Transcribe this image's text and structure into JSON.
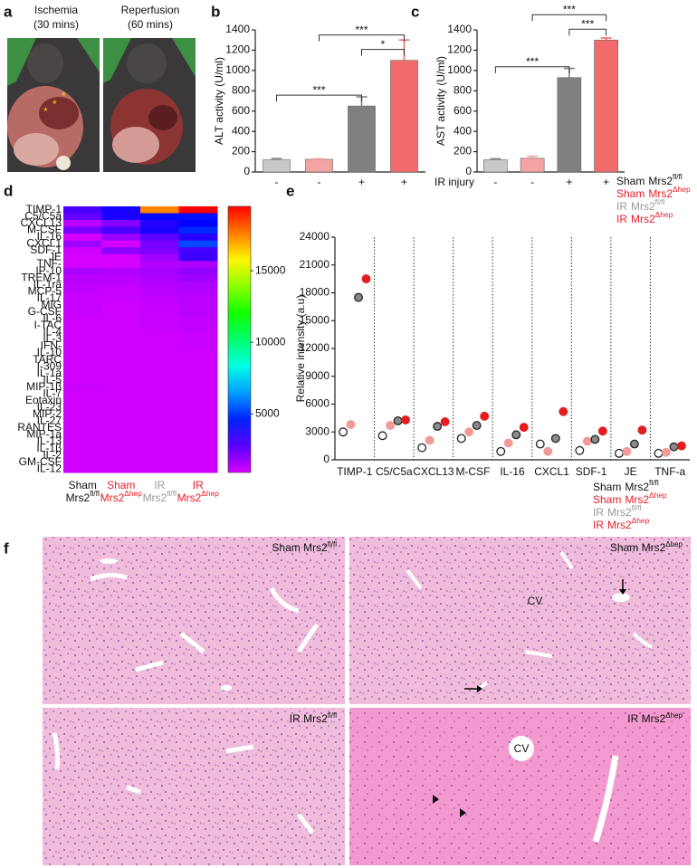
{
  "panel_a": {
    "label": "a",
    "photos": [
      {
        "title": "Ischemia",
        "subtitle": "(30 mins)",
        "marks": [
          "*",
          "*",
          "*"
        ]
      },
      {
        "title": "Reperfusion",
        "subtitle": "(60 mins)"
      }
    ]
  },
  "chart_data": [
    {
      "type": "bar",
      "label": "b",
      "ylabel": "ALT activity (U/ml)",
      "ylim": [
        0,
        1400
      ],
      "yticks": [
        0,
        200,
        400,
        600,
        800,
        1000,
        1200,
        1400
      ],
      "series": [
        {
          "color": "#c8c8c8",
          "values": [
            120
          ],
          "errors": [
            12
          ]
        },
        {
          "color": "#f4a3a3",
          "values": [
            125
          ],
          "errors": [
            5
          ]
        },
        {
          "color": "#808080",
          "values": [
            650
          ],
          "errors": [
            90
          ]
        },
        {
          "color": "#f26b6b",
          "values": [
            1100
          ],
          "errors": [
            200
          ]
        }
      ],
      "treatment": [
        "-",
        "-",
        "+",
        "+"
      ],
      "annotations": [
        {
          "text": "***",
          "pair": [
            0,
            2
          ]
        },
        {
          "text": "***",
          "pair": [
            1,
            3
          ]
        },
        {
          "text": "*",
          "pair": [
            2,
            3
          ]
        }
      ]
    },
    {
      "type": "bar",
      "label": "c",
      "ylabel": "AST activity (U/ml)",
      "ylim": [
        0,
        1400
      ],
      "yticks": [
        0,
        200,
        400,
        600,
        800,
        1000,
        1200,
        1400
      ],
      "series": [
        {
          "group": "Sham",
          "gene": "Mrs2",
          "sup": "fl/fl",
          "label_color": "#111111",
          "color": "#c8c8c8",
          "values": [
            120
          ],
          "errors": [
            10
          ]
        },
        {
          "group": "Sham",
          "gene": "Mrs2",
          "sup": "Δhep",
          "label_color": "#e8202a",
          "color": "#f4a3a3",
          "values": [
            135
          ],
          "errors": [
            20
          ]
        },
        {
          "group": "IR",
          "gene": "Mrs2",
          "sup": "fl/fl",
          "label_color": "#999999",
          "color": "#808080",
          "values": [
            930
          ],
          "errors": [
            90
          ]
        },
        {
          "group": "IR",
          "gene": "Mrs2",
          "sup": "Δhep",
          "label_color": "#e8202a",
          "color": "#f26b6b",
          "values": [
            1300
          ],
          "errors": [
            20
          ]
        }
      ],
      "treatment_label": "IR injury",
      "treatment": [
        "-",
        "-",
        "+",
        "+"
      ],
      "annotations": [
        {
          "text": "***",
          "pair": [
            0,
            2
          ]
        },
        {
          "text": "***",
          "pair": [
            1,
            3
          ]
        },
        {
          "text": "***",
          "pair": [
            2,
            3
          ]
        }
      ]
    },
    {
      "type": "heatmap",
      "label": "d",
      "columns": [
        {
          "group": "Sham",
          "gene": "Mrs2",
          "sup": "fl/fl",
          "label_color": "#111111"
        },
        {
          "group": "Sham",
          "gene": "Mrs2",
          "sup": "Δhep",
          "label_color": "#e8202a"
        },
        {
          "group": "IR",
          "gene": "Mrs2",
          "sup": "fl/fl",
          "label_color": "#999999"
        },
        {
          "group": "IR",
          "gene": "Mrs2",
          "sup": "Δhep",
          "label_color": "#e8202a"
        }
      ],
      "rows": [
        "TIMP-1",
        "C5/C5a",
        "CXCL13",
        "M-CSF",
        "IL-16",
        "CXCL1",
        "SDF-1",
        "JE",
        "TNF-",
        "IP-10",
        "TREM-1",
        "IL-1ra",
        "MCP-5",
        "IL-17",
        "MIG",
        "G-CSF",
        "IL-6",
        "I-TAC",
        "IL-4",
        "IL-3",
        "IFN-",
        "IL-10",
        "TARC",
        "I-309",
        "IL-1a",
        "IL-5",
        "MIP-1β",
        "IL-7",
        "Eotaxin",
        "IL-23",
        "MIP-2",
        "IL-27",
        "RANTES",
        "MIP-1a",
        "IL-13",
        "IL-1β",
        "IL-2",
        "GM-CSF",
        "IL-12"
      ],
      "values": [
        [
          3000,
          3800,
          17500,
          19500
        ],
        [
          2600,
          3700,
          4200,
          4300
        ],
        [
          1300,
          2100,
          3600,
          4100
        ],
        [
          2300,
          3000,
          3700,
          4700
        ],
        [
          900,
          1800,
          2700,
          3500
        ],
        [
          1700,
          900,
          2300,
          5200
        ],
        [
          1000,
          2000,
          2200,
          3100
        ],
        [
          700,
          900,
          1700,
          3200
        ],
        [
          700,
          800,
          1400,
          1500
        ],
        [
          1500,
          1400,
          1600,
          1900
        ],
        [
          1300,
          1300,
          1500,
          1700
        ],
        [
          1200,
          1200,
          1400,
          1500
        ],
        [
          1200,
          1100,
          1300,
          1400
        ],
        [
          1100,
          1100,
          1200,
          1300
        ],
        [
          1100,
          1000,
          1200,
          1300
        ],
        [
          1100,
          1000,
          1100,
          1300
        ],
        [
          1000,
          1000,
          1100,
          1200
        ],
        [
          1000,
          1000,
          1100,
          1200
        ],
        [
          1000,
          1000,
          1000,
          1100
        ],
        [
          1000,
          1000,
          1000,
          1100
        ],
        [
          1000,
          1000,
          1000,
          1100
        ],
        [
          1000,
          1000,
          1000,
          1000
        ],
        [
          1000,
          1000,
          1000,
          1000
        ],
        [
          1000,
          1000,
          1000,
          1000
        ],
        [
          1000,
          1000,
          1000,
          1000
        ],
        [
          1000,
          1000,
          1000,
          1000
        ],
        [
          1100,
          1000,
          1000,
          1000
        ],
        [
          1000,
          1000,
          1000,
          1000
        ],
        [
          1000,
          1000,
          1000,
          1000
        ],
        [
          1000,
          1000,
          1000,
          1000
        ],
        [
          1000,
          1000,
          1000,
          1000
        ],
        [
          1000,
          1000,
          1000,
          1000
        ],
        [
          1000,
          1000,
          1000,
          1000
        ],
        [
          1000,
          1000,
          1000,
          1000
        ],
        [
          1000,
          1000,
          1000,
          1000
        ],
        [
          1000,
          1000,
          1000,
          1000
        ],
        [
          1000,
          1000,
          1000,
          1000
        ],
        [
          1000,
          1000,
          1000,
          1000
        ],
        [
          1000,
          1000,
          1000,
          1000
        ]
      ],
      "zlim": [
        900,
        19500
      ],
      "zticks": [
        5000,
        10000,
        15000
      ]
    },
    {
      "type": "dot",
      "label": "e",
      "ylabel": "Relative intensity (a.u)",
      "categories": [
        "TIMP-1",
        "C5/C5a",
        "CXCL13",
        "M-CSF",
        "IL-16",
        "CXCL1",
        "SDF-1",
        "JE",
        "TNF-a"
      ],
      "ylim": [
        0,
        24000
      ],
      "yticks": [
        0,
        3000,
        6000,
        9000,
        12000,
        15000,
        18000,
        21000,
        24000
      ],
      "series": [
        {
          "group": "Sham",
          "gene": "Mrs2",
          "sup": "fl/fl",
          "label_color": "#111111",
          "color": "#ffffff",
          "values": [
            3000,
            2600,
            1300,
            2300,
            900,
            1700,
            1000,
            700,
            700
          ]
        },
        {
          "group": "Sham",
          "gene": "Mrs2",
          "sup": "Δhep",
          "label_color": "#e8202a",
          "color": "#f29a9a",
          "values": [
            3800,
            3700,
            2100,
            3000,
            1800,
            900,
            2000,
            900,
            800
          ]
        },
        {
          "group": "IR",
          "gene": "Mrs2",
          "sup": "fl/fl",
          "label_color": "#999999",
          "color": "#8a8a8a",
          "values": [
            17500,
            4200,
            3600,
            3700,
            2700,
            2300,
            2200,
            1700,
            1400
          ]
        },
        {
          "group": "IR",
          "gene": "Mrs2",
          "sup": "Δhep",
          "label_color": "#e8202a",
          "color": "#e41e1e",
          "values": [
            19500,
            4300,
            4100,
            4700,
            3500,
            5200,
            3100,
            3200,
            1500
          ]
        }
      ]
    }
  ],
  "panel_f": {
    "label": "f",
    "images": [
      {
        "group": "Sham",
        "gene": "Mrs2",
        "sup": "fl/fl"
      },
      {
        "group": "Sham",
        "gene": "Mrs2",
        "sup": "Δhep",
        "note": "CV"
      },
      {
        "group": "IR",
        "gene": "Mrs2",
        "sup": "fl/fl"
      },
      {
        "group": "IR",
        "gene": "Mrs2",
        "sup": "Δhep",
        "note": "CV"
      }
    ]
  }
}
